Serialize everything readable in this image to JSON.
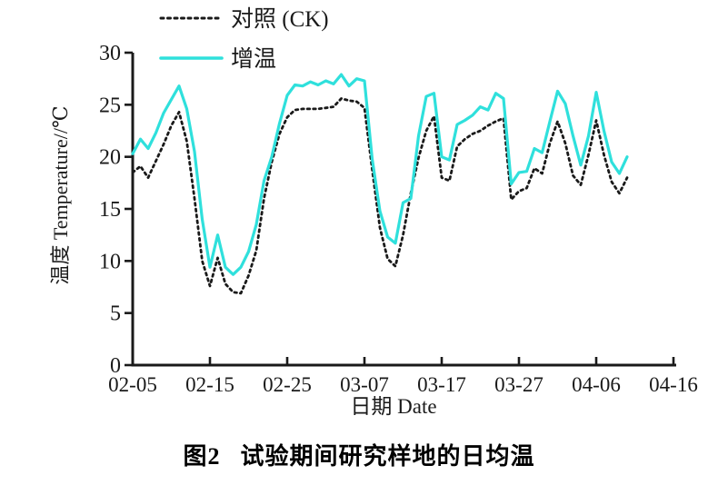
{
  "figure": {
    "caption_label": "图2",
    "caption_text": "试验期间研究样地的日均温"
  },
  "chart_data": {
    "type": "line",
    "title": "",
    "xlabel": "日期 Date",
    "ylabel": "温度 Temperature//℃",
    "ylim": [
      0,
      30
    ],
    "yticks": [
      0,
      5,
      10,
      15,
      20,
      25,
      30
    ],
    "xtick_labels": [
      "02-05",
      "02-15",
      "02-25",
      "03-07",
      "03-17",
      "03-27",
      "04-06",
      "04-16"
    ],
    "xtick_day_index": [
      0,
      10,
      20,
      30,
      40,
      50,
      60,
      70
    ],
    "grid": false,
    "legend_position": "top-left-inside",
    "x_dates": [
      "02-05",
      "02-06",
      "02-07",
      "02-08",
      "02-09",
      "02-10",
      "02-11",
      "02-12",
      "02-13",
      "02-14",
      "02-15",
      "02-16",
      "02-17",
      "02-18",
      "02-19",
      "02-20",
      "02-21",
      "02-22",
      "02-23",
      "02-24",
      "02-25",
      "02-26",
      "02-27",
      "02-28",
      "03-01",
      "03-02",
      "03-03",
      "03-04",
      "03-05",
      "03-06",
      "03-07",
      "03-08",
      "03-09",
      "03-10",
      "03-11",
      "03-12",
      "03-13",
      "03-14",
      "03-15",
      "03-16",
      "03-17",
      "03-18",
      "03-19",
      "03-20",
      "03-21",
      "03-22",
      "03-23",
      "03-24",
      "03-25",
      "03-26",
      "03-27",
      "03-28",
      "03-29",
      "03-30",
      "03-31",
      "04-01",
      "04-02",
      "04-03",
      "04-04",
      "04-05",
      "04-06",
      "04-07",
      "04-08",
      "04-09",
      "04-10"
    ],
    "series": [
      {
        "name": "对照 (CK)",
        "line_style": "dotted",
        "color": "#1a1a1a",
        "values": [
          18.5,
          19.1,
          18.0,
          19.6,
          21.2,
          23.0,
          24.3,
          21.5,
          16.0,
          10.0,
          7.6,
          10.3,
          7.8,
          7.0,
          6.9,
          8.6,
          11.0,
          16.0,
          19.5,
          22.2,
          23.8,
          24.5,
          24.6,
          24.6,
          24.6,
          24.7,
          24.8,
          25.6,
          25.4,
          25.3,
          24.7,
          18.8,
          13.2,
          10.2,
          9.5,
          12.5,
          16.5,
          19.9,
          22.5,
          23.9,
          18.0,
          17.7,
          21.0,
          21.7,
          22.2,
          22.5,
          23.0,
          23.4,
          23.7,
          15.9,
          16.7,
          17.0,
          18.9,
          18.4,
          21.3,
          23.4,
          21.3,
          18.2,
          17.3,
          20.2,
          23.5,
          20.2,
          17.6,
          16.5,
          18.0
        ]
      },
      {
        "name": "增温",
        "line_style": "solid",
        "color": "#2fe0dc",
        "values": [
          20.3,
          21.7,
          20.8,
          22.3,
          24.2,
          25.5,
          26.8,
          24.6,
          20.5,
          14.0,
          9.4,
          12.5,
          9.4,
          8.7,
          9.4,
          10.9,
          13.5,
          17.7,
          20.0,
          23.2,
          25.9,
          26.9,
          26.8,
          27.2,
          26.9,
          27.3,
          27.0,
          27.9,
          26.8,
          27.5,
          27.3,
          19.8,
          14.8,
          12.3,
          11.7,
          15.6,
          16.0,
          22.0,
          25.8,
          26.1,
          20.0,
          19.7,
          23.1,
          23.5,
          24.0,
          24.8,
          24.5,
          26.1,
          25.6,
          17.4,
          18.5,
          18.6,
          20.8,
          20.4,
          23.4,
          26.3,
          25.1,
          22.0,
          19.2,
          22.0,
          26.2,
          22.5,
          19.5,
          18.4,
          20.0
        ]
      }
    ]
  }
}
